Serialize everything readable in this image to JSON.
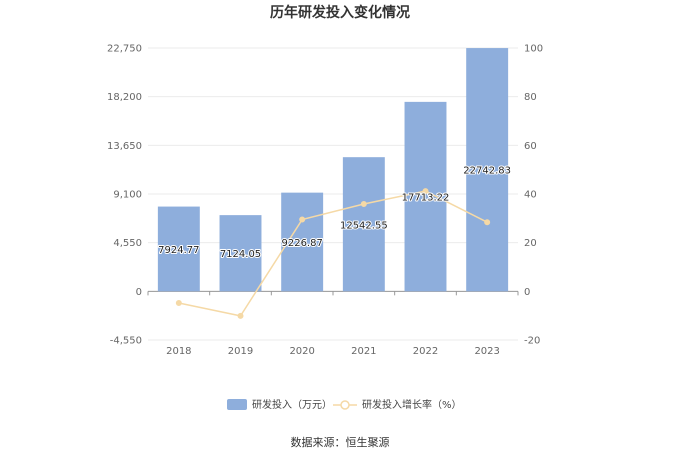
{
  "chart_data": {
    "type": "bar",
    "title": "历年研发投入变化情况",
    "categories": [
      "2018",
      "2019",
      "2020",
      "2021",
      "2022",
      "2023"
    ],
    "series": [
      {
        "name": "研发投入（万元）",
        "type": "bar",
        "axis": "left",
        "color": "#8eaedc",
        "values": [
          7924.77,
          7124.05,
          9226.87,
          12542.55,
          17713.22,
          22742.83
        ],
        "labels": [
          "7924.77",
          "7124.05",
          "9226.87",
          "12542.55",
          "17713.22",
          "22742.83"
        ]
      },
      {
        "name": "研发投入增长率（%）",
        "type": "line",
        "axis": "right",
        "color": "#f5d9a6",
        "values": [
          -4.8,
          -10.1,
          29.5,
          35.9,
          41.2,
          28.4
        ]
      }
    ],
    "left_axis": {
      "min": -4550,
      "max": 22750,
      "ticks": [
        -4550,
        0,
        4550,
        9100,
        13650,
        18200,
        22750
      ],
      "tick_labels": [
        "-4,550",
        "0",
        "4,550",
        "9,100",
        "13,650",
        "18,200",
        "22,750"
      ]
    },
    "right_axis": {
      "min": -20,
      "max": 100,
      "ticks": [
        -20,
        0,
        20,
        40,
        60,
        80,
        100
      ],
      "tick_labels": [
        "-20",
        "0",
        "20",
        "40",
        "60",
        "80",
        "100"
      ]
    },
    "grid": true,
    "legend": "bottom-center"
  },
  "source_text": "数据来源：恒生聚源"
}
